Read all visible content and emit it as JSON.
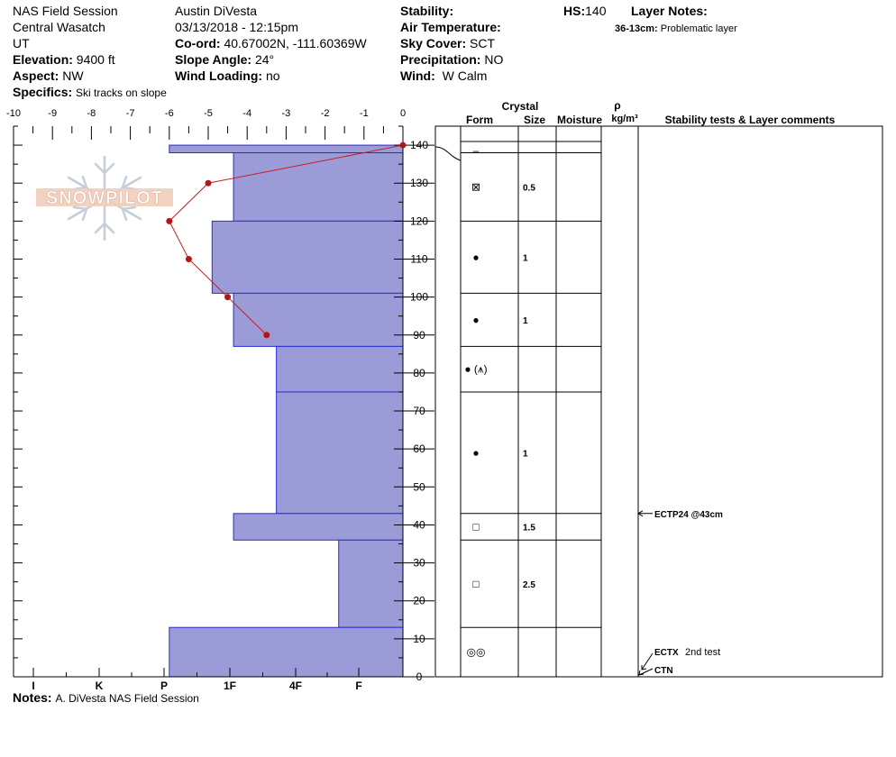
{
  "header": {
    "col1": {
      "title": "NAS Field Session",
      "range": "Central Wasatch",
      "state": "UT",
      "elevation_label": "Elevation:",
      "elevation_value": "9400 ft",
      "aspect_label": "Aspect:",
      "aspect_value": "NW",
      "specifics_label": "Specifics:",
      "specifics_value": "Ski tracks on slope"
    },
    "col2": {
      "observer": "Austin DiVesta",
      "datetime": "03/13/2018 - 12:15pm",
      "coord_label": "Co-ord:",
      "coord_value": "40.67002N, -111.60369W",
      "slope_label": "Slope Angle:",
      "slope_value": "24°",
      "wind_loading_label": "Wind Loading:",
      "wind_loading_value": "no"
    },
    "col3": {
      "stability_label": "Stability:",
      "air_temp_label": "Air Temperature:",
      "sky_label": "Sky Cover:",
      "sky_value": "SCT",
      "precip_label": "Precipitation:",
      "precip_value": "NO",
      "wind_label": "Wind:",
      "wind_value": "W Calm"
    },
    "col4": {
      "hs_label": "HS:",
      "hs_value": "140",
      "layer_notes_label": "Layer Notes:",
      "layer_note_range": "36-13cm:",
      "layer_note_text": "Problematic layer"
    }
  },
  "logo_text": "SNOWPILOT",
  "notes": {
    "label": "Notes:",
    "value": "A. DiVesta NAS Field Session"
  },
  "table": {
    "headers": {
      "crystal": "Crystal",
      "form": "Form",
      "size": "Size",
      "moisture": "Moisture",
      "rho": "ρ",
      "density_unit": "kg/m³",
      "stability": "Stability tests & Layer comments"
    },
    "rows": [
      {
        "form": "–",
        "size": ""
      },
      {
        "form": "⊠",
        "size": "0.5"
      },
      {
        "form": "●",
        "size": "1"
      },
      {
        "form": "●",
        "size": "1"
      },
      {
        "form": "● (⩚)",
        "size": ""
      },
      {
        "form": "●",
        "size": "1"
      },
      {
        "form": "□",
        "size": "1.5"
      },
      {
        "form": "□",
        "size": "2.5"
      },
      {
        "form": "◎◎",
        "size": ""
      }
    ],
    "tests": [
      {
        "label": "ECTP24 @43cm",
        "depth_cm": 43
      },
      {
        "label": "ECTX",
        "extra": "2nd test",
        "depth_cm": 0
      },
      {
        "label": "CTN",
        "depth_cm": 0
      }
    ]
  },
  "chart_data": {
    "type": "snow-profile",
    "temperature_axis": {
      "ticks": [
        "-10",
        "-9",
        "-8",
        "-7",
        "-6",
        "-5",
        "-4",
        "-3",
        "-2",
        "-1",
        "0"
      ],
      "range": [
        -10,
        0
      ]
    },
    "height_axis": {
      "ticks": [
        "0",
        "10",
        "20",
        "30",
        "40",
        "50",
        "60",
        "70",
        "80",
        "90",
        "100",
        "110",
        "120",
        "130",
        "140"
      ],
      "range": [
        0,
        145
      ]
    },
    "hardness_axis": {
      "ticks": [
        "I",
        "K",
        "P",
        "1F",
        "4F",
        "F"
      ],
      "range_values": [
        -10,
        0
      ]
    },
    "layers": [
      {
        "top": 140,
        "bottom": 138,
        "hardness_value": -6.0
      },
      {
        "top": 138,
        "bottom": 120,
        "hardness_value": -4.35
      },
      {
        "top": 120,
        "bottom": 101,
        "hardness_value": -4.9
      },
      {
        "top": 101,
        "bottom": 87,
        "hardness_value": -4.35
      },
      {
        "top": 87,
        "bottom": 75,
        "hardness_value": -3.25
      },
      {
        "top": 75,
        "bottom": 43,
        "hardness_value": -3.25
      },
      {
        "top": 43,
        "bottom": 36,
        "hardness_value": -4.35
      },
      {
        "top": 36,
        "bottom": 13,
        "hardness_value": -1.65
      },
      {
        "top": 13,
        "bottom": 0,
        "hardness_value": -6.0
      }
    ],
    "temperature_profile": [
      {
        "height": 140,
        "temp": 0
      },
      {
        "height": 130,
        "temp": -5
      },
      {
        "height": 120,
        "temp": -6
      },
      {
        "height": 110,
        "temp": -5.5
      },
      {
        "height": 100,
        "temp": -4.5
      },
      {
        "height": 90,
        "temp": -3.5
      }
    ],
    "colors": {
      "layer_fill": "#9b9bd8",
      "layer_stroke": "#2b2bd6",
      "temp_line": "#c81e1e",
      "temp_point": "#b01818"
    }
  }
}
